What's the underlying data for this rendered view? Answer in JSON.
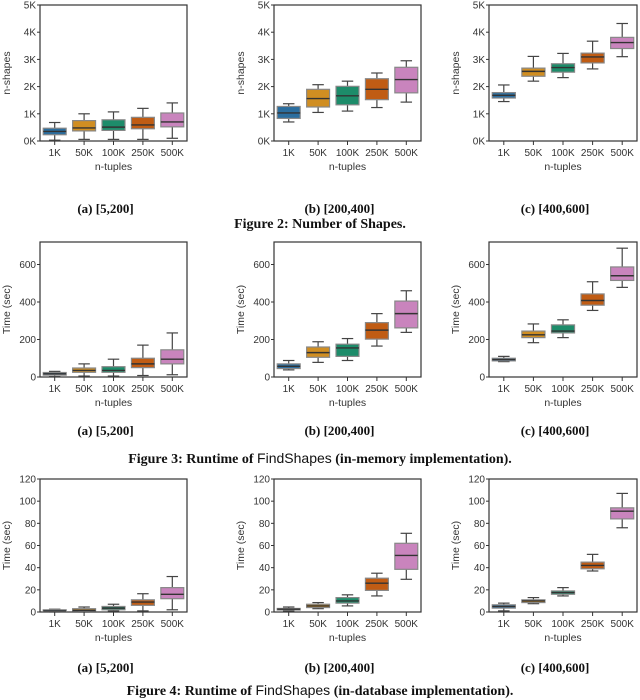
{
  "colors": [
    "#2b6e9f",
    "#d08e22",
    "#1d8c6a",
    "#c05c14",
    "#c984bd"
  ],
  "chart_data": [
    {
      "type": "box",
      "figure": "Figure 2",
      "caption": {
        "prefix": "Figure 2: Number of Shapes.",
        "code": "",
        "suffix": ""
      },
      "ylabel": "n-shapes",
      "xlabel": "n-tuples",
      "ylim": [
        0,
        5000
      ],
      "yticks": [
        0,
        1000,
        2000,
        3000,
        4000,
        5000
      ],
      "ytick_labels": [
        "0K",
        "1K",
        "2K",
        "3K",
        "4K",
        "5K"
      ],
      "categories": [
        "1K",
        "50K",
        "100K",
        "250K",
        "500K"
      ],
      "panels": [
        {
          "subcaption": "(a) [5,200]",
          "boxes": [
            [
              30,
              230,
              350,
              470,
              680
            ],
            [
              60,
              370,
              480,
              750,
              1000
            ],
            [
              60,
              390,
              510,
              780,
              1070
            ],
            [
              60,
              450,
              590,
              870,
              1200
            ],
            [
              100,
              520,
              700,
              1030,
              1400
            ]
          ]
        },
        {
          "subcaption": "(b) [200,400]",
          "boxes": [
            [
              700,
              830,
              1030,
              1270,
              1370
            ],
            [
              1050,
              1250,
              1560,
              1900,
              2070
            ],
            [
              1100,
              1330,
              1660,
              2010,
              2200
            ],
            [
              1230,
              1520,
              1900,
              2290,
              2500
            ],
            [
              1430,
              1770,
              2260,
              2710,
              2950
            ]
          ]
        },
        {
          "subcaption": "(c) [400,600]",
          "boxes": [
            [
              1450,
              1580,
              1680,
              1780,
              2060
            ],
            [
              2200,
              2380,
              2560,
              2680,
              3110
            ],
            [
              2330,
              2530,
              2700,
              2840,
              3220
            ],
            [
              2650,
              2870,
              3090,
              3230,
              3670
            ],
            [
              3100,
              3400,
              3620,
              3810,
              4320
            ]
          ]
        }
      ]
    },
    {
      "type": "box",
      "figure": "Figure 3",
      "caption": {
        "prefix": "Figure 3: Runtime of ",
        "code": "FindShapes",
        "suffix": " (in-memory implementation)."
      },
      "ylabel": "Time (sec)",
      "xlabel": "n-tuples",
      "ylim": [
        0,
        720
      ],
      "yticks": [
        0,
        200,
        400,
        600
      ],
      "ytick_labels": [
        "0",
        "200",
        "400",
        "600"
      ],
      "categories": [
        "1K",
        "50K",
        "100K",
        "250K",
        "500K"
      ],
      "panels": [
        {
          "subcaption": "(a) [5,200]",
          "boxes": [
            [
              2,
              10,
              17,
              24,
              30
            ],
            [
              5,
              25,
              35,
              48,
              70
            ],
            [
              5,
              25,
              35,
              55,
              95
            ],
            [
              8,
              50,
              70,
              100,
              170
            ],
            [
              12,
              70,
              95,
              145,
              235
            ]
          ]
        },
        {
          "subcaption": "(b) [200,400]",
          "boxes": [
            [
              38,
              45,
              57,
              70,
              88
            ],
            [
              78,
              105,
              130,
              160,
              188
            ],
            [
              88,
              110,
              155,
              175,
              205
            ],
            [
              165,
              202,
              250,
              290,
              338
            ],
            [
              238,
              262,
              338,
              405,
              460
            ]
          ]
        },
        {
          "subcaption": "(c) [400,600]",
          "boxes": [
            [
              82,
              86,
              93,
              100,
              110
            ],
            [
              183,
              210,
              225,
              245,
              283
            ],
            [
              210,
              235,
              245,
              278,
              305
            ],
            [
              355,
              383,
              408,
              443,
              508
            ],
            [
              478,
              515,
              540,
              587,
              687
            ]
          ]
        }
      ]
    },
    {
      "type": "box",
      "figure": "Figure 4",
      "caption": {
        "prefix": "Figure 4: Runtime of ",
        "code": "FindShapes",
        "suffix": " (in-database implementation)."
      },
      "ylabel": "Time (sec)",
      "xlabel": "n-tuples",
      "ylim": [
        0,
        120
      ],
      "yticks": [
        0,
        20,
        40,
        60,
        80,
        100,
        120
      ],
      "ytick_labels": [
        "0",
        "20",
        "40",
        "60",
        "80",
        "100",
        "120"
      ],
      "categories": [
        "1K",
        "50K",
        "100K",
        "250K",
        "500K"
      ],
      "panels": [
        {
          "subcaption": "(a) [5,200]",
          "boxes": [
            [
              0,
              0.5,
              1,
              2,
              2.5
            ],
            [
              0,
              1,
              1.5,
              3,
              4.5
            ],
            [
              1,
              2,
              3.5,
              5,
              7
            ],
            [
              1,
              6,
              9,
              11,
              16.5
            ],
            [
              2,
              12,
              16,
              22,
              32
            ]
          ]
        },
        {
          "subcaption": "(b) [200,400]",
          "boxes": [
            [
              1,
              1.8,
              2.5,
              3.2,
              4.5
            ],
            [
              3,
              4,
              5.5,
              7,
              8.5
            ],
            [
              5.5,
              8,
              10,
              13,
              15.5
            ],
            [
              14.5,
              19.5,
              26,
              30.5,
              35
            ],
            [
              29.5,
              38.5,
              51,
              62,
              71
            ]
          ]
        },
        {
          "subcaption": "(c) [400,600]",
          "boxes": [
            [
              1,
              3.5,
              5,
              6.5,
              8
            ],
            [
              7.5,
              8.5,
              10,
              11,
              13
            ],
            [
              14.5,
              16,
              17.5,
              19,
              22
            ],
            [
              37,
              39,
              42,
              45,
              52
            ],
            [
              76,
              84,
              91,
              94,
              107
            ]
          ]
        }
      ]
    }
  ]
}
